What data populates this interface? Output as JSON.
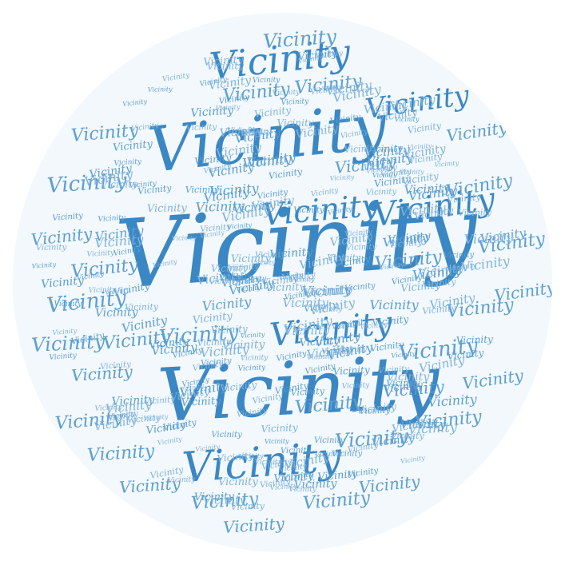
{
  "word": "Vicinity",
  "colors": {
    "background": "#ffffff",
    "disc": "#f3f8fc",
    "primary": "#3a87c4",
    "secondary": "#5b9fd1",
    "muted": "#7fb3dc"
  }
}
